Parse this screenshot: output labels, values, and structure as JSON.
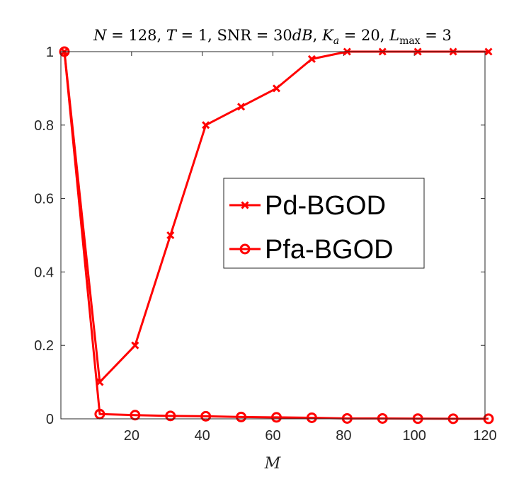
{
  "chart_data": {
    "type": "line",
    "title": "N = 128, T = 1, SNR = 30dB, K_a = 20, L_max = 3",
    "title_parts": {
      "p1": "N",
      "p2": " = 128, ",
      "p3": "T",
      "p4": " = 1, SNR = 30",
      "p5": "dB",
      "p6": ", ",
      "p7": "K",
      "p8": "a",
      "p9": " = 20, ",
      "p10": "L",
      "p11": "max",
      "p12": " = 3"
    },
    "xlabel": "M",
    "ylabel": "",
    "xlim": [
      0,
      120
    ],
    "ylim": [
      0,
      1
    ],
    "xticks": [
      20,
      40,
      60,
      80,
      100,
      120
    ],
    "xtick_labels": [
      "20",
      "40",
      "60",
      "80",
      "100",
      "120"
    ],
    "yticks": [
      0,
      0.2,
      0.4,
      0.6,
      0.8,
      1
    ],
    "ytick_labels": [
      "0",
      "0.2",
      "0.4",
      "0.6",
      "0.8",
      "1"
    ],
    "x": [
      1,
      11,
      21,
      31,
      41,
      51,
      61,
      71,
      81,
      91,
      101,
      111,
      121
    ],
    "series": [
      {
        "name": "Pd-BGOD",
        "marker": "x",
        "color": "#ff0000",
        "values": [
          1.0,
          0.1,
          0.2,
          0.5,
          0.8,
          0.85,
          0.9,
          0.98,
          1.0,
          1.0,
          1.0,
          1.0,
          1.0
        ]
      },
      {
        "name": "Pfa-BGOD",
        "marker": "o",
        "color": "#ff0000",
        "values": [
          1.0,
          0.013,
          0.01,
          0.008,
          0.007,
          0.005,
          0.004,
          0.003,
          0.001,
          0.001,
          0.0005,
          0.0003,
          0.0002
        ]
      }
    ],
    "legend_position": "center-right",
    "grid": false
  }
}
